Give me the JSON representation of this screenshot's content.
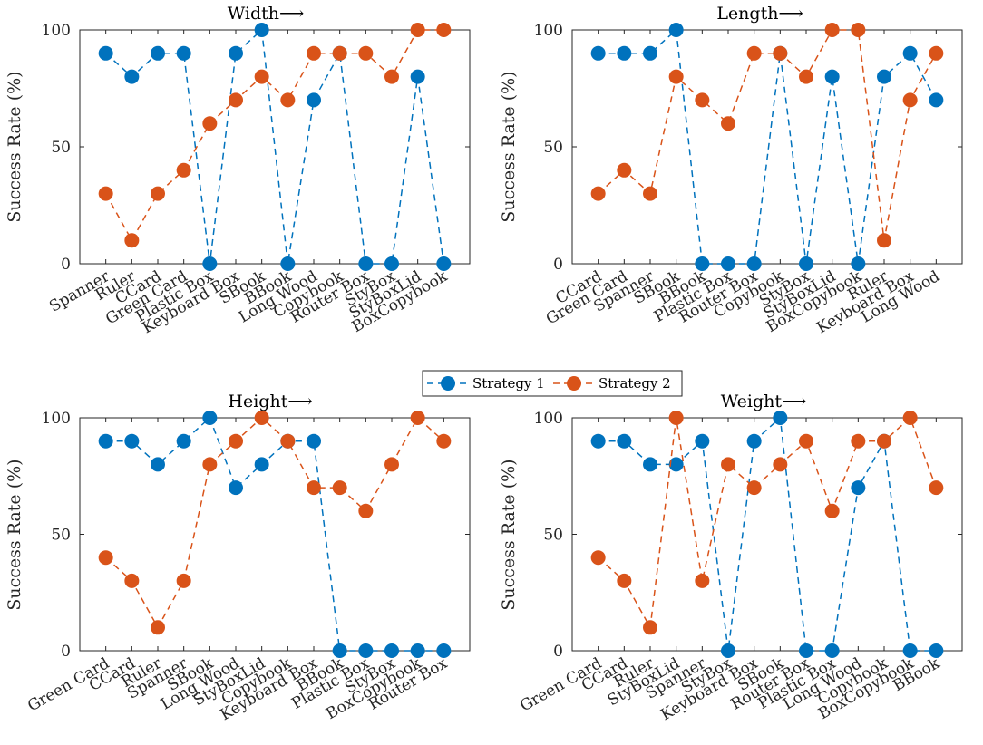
{
  "legend": {
    "entries": [
      "Strategy 1",
      "Strategy 2"
    ]
  },
  "colors": {
    "strategy1": "#0072BD",
    "strategy2": "#D95319",
    "axis": "#262626"
  },
  "chart_data": [
    {
      "type": "line",
      "title": "Width⟶",
      "xlabel": "",
      "ylabel": "Success Rate (%)",
      "ylim": [
        0,
        100
      ],
      "yticks": [
        0,
        50,
        100
      ],
      "categories": [
        "Spanner",
        "Ruler",
        "CCard",
        "Green Card",
        "Plastic Box",
        "Keyboard Box",
        "SBook",
        "BBook",
        "Long Wood",
        "Copybook",
        "Router Box",
        "StyBox",
        "StyBoxLid",
        "BoxCopybook"
      ],
      "series": [
        {
          "name": "Strategy 1",
          "values": [
            90,
            80,
            90,
            90,
            0,
            90,
            100,
            0,
            70,
            90,
            0,
            0,
            80,
            0
          ]
        },
        {
          "name": "Strategy 2",
          "values": [
            30,
            10,
            30,
            40,
            60,
            70,
            80,
            70,
            90,
            90,
            90,
            80,
            100,
            100
          ]
        }
      ]
    },
    {
      "type": "line",
      "title": "Length⟶",
      "xlabel": "",
      "ylabel": "Success Rate (%)",
      "ylim": [
        0,
        100
      ],
      "yticks": [
        0,
        50,
        100
      ],
      "categories": [
        "CCard",
        "Green Card",
        "Spanner",
        "SBook",
        "BBook",
        "Plastic Box",
        "Router Box",
        "Copybook",
        "StyBox",
        "StyBoxLid",
        "BoxCopybook",
        "Ruler",
        "Keyboard Box",
        "Long Wood"
      ],
      "series": [
        {
          "name": "Strategy 1",
          "values": [
            90,
            90,
            90,
            100,
            0,
            0,
            0,
            90,
            0,
            80,
            0,
            80,
            90,
            70
          ]
        },
        {
          "name": "Strategy 2",
          "values": [
            30,
            40,
            30,
            80,
            70,
            60,
            90,
            90,
            80,
            100,
            100,
            10,
            70,
            90
          ]
        }
      ]
    },
    {
      "type": "line",
      "title": "Height⟶",
      "xlabel": "",
      "ylabel": "Success Rate (%)",
      "ylim": [
        0,
        100
      ],
      "yticks": [
        0,
        50,
        100
      ],
      "categories": [
        "Green Card",
        "CCard",
        "Ruler",
        "Spanner",
        "SBook",
        "Long Wood",
        "StyBoxLid",
        "Copybook",
        "Keyboard Box",
        "BBook",
        "Plastic Box",
        "StyBox",
        "BoxCopybook",
        "Router Box"
      ],
      "series": [
        {
          "name": "Strategy 1",
          "values": [
            90,
            90,
            80,
            90,
            100,
            70,
            80,
            90,
            90,
            0,
            0,
            0,
            0,
            0
          ]
        },
        {
          "name": "Strategy 2",
          "values": [
            40,
            30,
            10,
            30,
            80,
            90,
            100,
            90,
            70,
            70,
            60,
            80,
            100,
            90
          ]
        }
      ]
    },
    {
      "type": "line",
      "title": "Weight⟶",
      "xlabel": "",
      "ylabel": "Success Rate (%)",
      "ylim": [
        0,
        100
      ],
      "yticks": [
        0,
        50,
        100
      ],
      "categories": [
        "Green Card",
        "CCard",
        "Ruler",
        "StyBoxLid",
        "Spanner",
        "StyBox",
        "Keyboard Box",
        "SBook",
        "Router Box",
        "Plastic Box",
        "Long Wood",
        "Copybook",
        "BoxCopybook",
        "BBook"
      ],
      "series": [
        {
          "name": "Strategy 1",
          "values": [
            90,
            90,
            80,
            80,
            90,
            0,
            90,
            100,
            0,
            0,
            70,
            90,
            0,
            0
          ]
        },
        {
          "name": "Strategy 2",
          "values": [
            40,
            30,
            10,
            100,
            30,
            80,
            70,
            80,
            90,
            60,
            90,
            90,
            100,
            70
          ]
        }
      ]
    }
  ]
}
